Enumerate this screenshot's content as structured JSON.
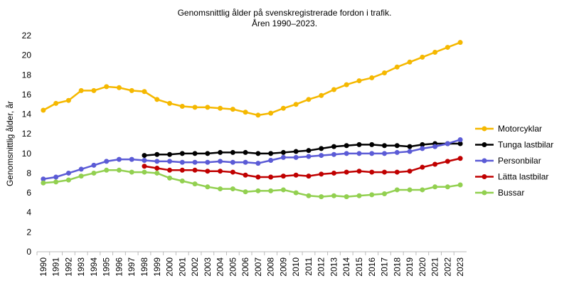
{
  "chart_data": {
    "type": "line",
    "title": "Genomsnittlig ålder på svenskregistrerade fordon i trafik.",
    "subtitle": "Åren 1990–2023.",
    "y_label": "Genomsnittlig ålder, år",
    "categories": [
      "1990",
      "1991",
      "1992",
      "1993",
      "1994",
      "1995",
      "1996",
      "1997",
      "1998",
      "1999",
      "2000",
      "2001",
      "2002",
      "2003",
      "2004",
      "2005",
      "2006",
      "2007",
      "2008",
      "2009",
      "2010",
      "2011",
      "2012",
      "2013",
      "2014",
      "2015",
      "2016",
      "2017",
      "2018",
      "2019",
      "2020",
      "2021",
      "2022",
      "2023"
    ],
    "ylim": [
      0,
      22
    ],
    "yticks": [
      0,
      2,
      4,
      6,
      8,
      10,
      12,
      14,
      16,
      18,
      20,
      22
    ],
    "grid": false,
    "legend": "right",
    "series": [
      {
        "name": "Motorcyklar",
        "color": "#f5b800",
        "values": [
          14.4,
          15.1,
          15.4,
          16.4,
          16.4,
          16.8,
          16.7,
          16.4,
          16.3,
          15.5,
          15.1,
          14.8,
          14.7,
          14.7,
          14.6,
          14.5,
          14.2,
          13.9,
          14.1,
          14.6,
          15.0,
          15.5,
          15.9,
          16.5,
          17.0,
          17.4,
          17.7,
          18.2,
          18.8,
          19.3,
          19.8,
          20.3,
          20.8,
          21.3
        ]
      },
      {
        "name": "Tunga lastbilar",
        "color": "#000000",
        "values": [
          null,
          null,
          null,
          null,
          null,
          null,
          null,
          null,
          9.8,
          9.9,
          9.9,
          10.0,
          10.0,
          10.0,
          10.1,
          10.1,
          10.1,
          10.0,
          10.0,
          10.1,
          10.2,
          10.3,
          10.5,
          10.7,
          10.8,
          10.9,
          10.9,
          10.8,
          10.8,
          10.7,
          10.9,
          11.0,
          11.0,
          11.0
        ]
      },
      {
        "name": "Personbilar",
        "color": "#5b5bd6",
        "values": [
          7.4,
          7.6,
          8.0,
          8.4,
          8.8,
          9.2,
          9.4,
          9.4,
          9.3,
          9.2,
          9.2,
          9.1,
          9.1,
          9.1,
          9.2,
          9.1,
          9.1,
          9.0,
          9.3,
          9.6,
          9.6,
          9.7,
          9.8,
          9.9,
          10.0,
          10.0,
          10.0,
          10.0,
          10.1,
          10.2,
          10.5,
          10.7,
          11.0,
          11.4
        ]
      },
      {
        "name": "Lätta lastbilar",
        "color": "#c00000",
        "values": [
          null,
          null,
          null,
          null,
          null,
          null,
          null,
          null,
          8.7,
          8.5,
          8.3,
          8.3,
          8.3,
          8.2,
          8.2,
          8.1,
          7.8,
          7.6,
          7.6,
          7.7,
          7.8,
          7.7,
          7.9,
          8.0,
          8.1,
          8.2,
          8.1,
          8.1,
          8.1,
          8.2,
          8.6,
          8.9,
          9.2,
          9.5
        ]
      },
      {
        "name": "Bussar",
        "color": "#92d050",
        "values": [
          7.0,
          7.1,
          7.3,
          7.7,
          8.0,
          8.3,
          8.3,
          8.1,
          8.1,
          8.0,
          7.5,
          7.2,
          6.9,
          6.6,
          6.4,
          6.4,
          6.1,
          6.2,
          6.2,
          6.3,
          6.0,
          5.7,
          5.6,
          5.7,
          5.6,
          5.7,
          5.8,
          5.9,
          6.3,
          6.3,
          6.3,
          6.6,
          6.6,
          6.8
        ]
      }
    ]
  }
}
